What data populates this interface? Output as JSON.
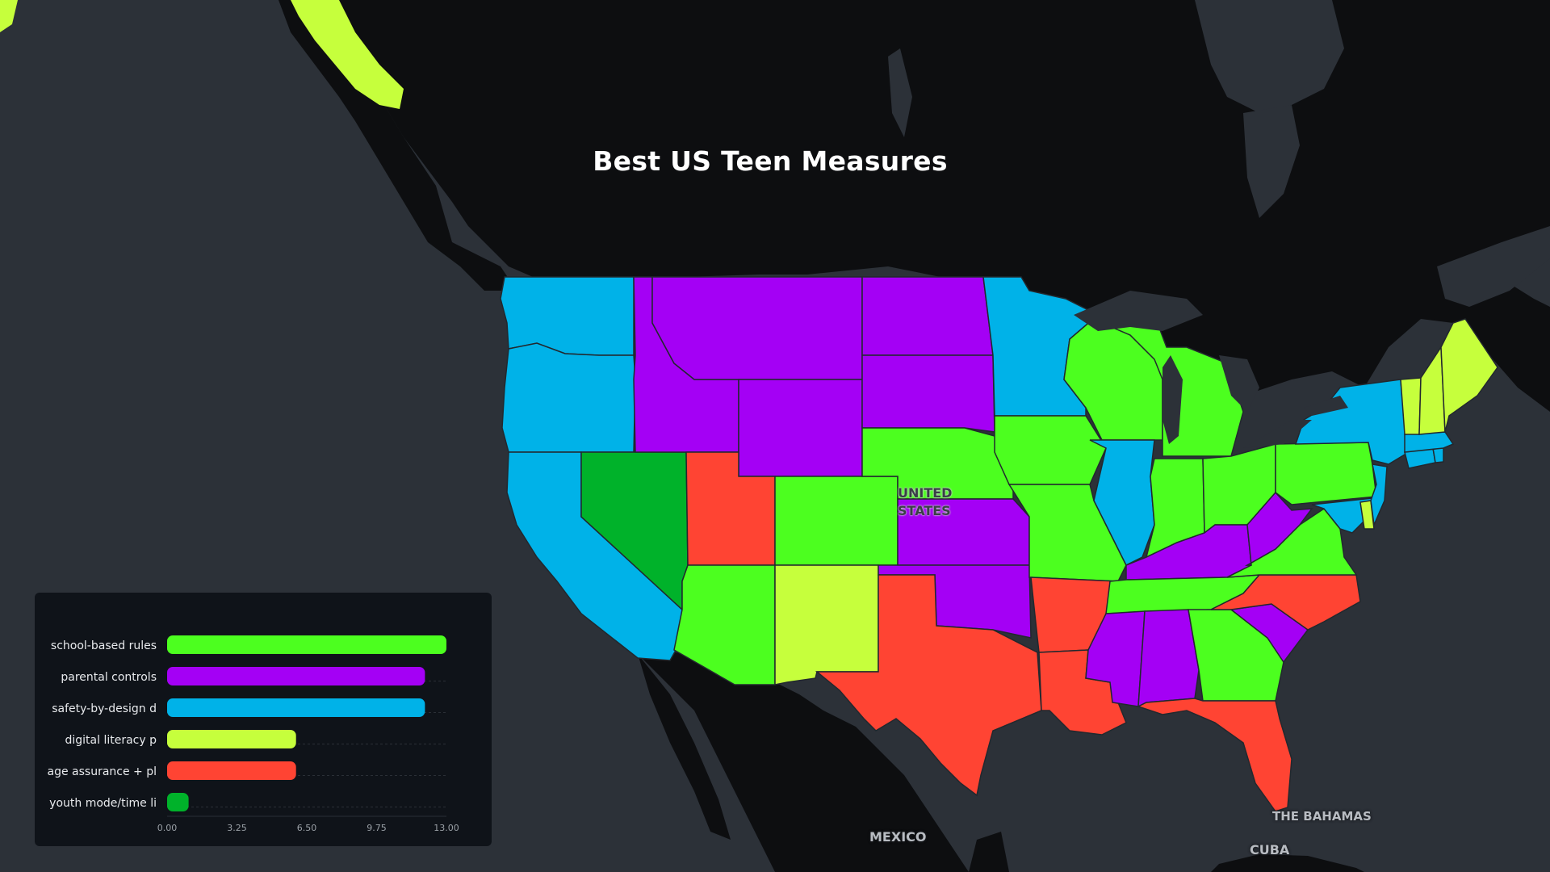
{
  "title": "Best US Teen Measures",
  "places": {
    "country": "UNITED\nSTATES",
    "mexico": "MEXICO",
    "bahamas": "THE BAHAMAS",
    "cuba": "CUBA"
  },
  "colors": {
    "ocean": "#2c3138",
    "land": "#0d0e10",
    "school_based_rules": "#4cff1f",
    "parental_controls": "#a400f5",
    "safety_by_design": "#00b2e8",
    "digital_literacy": "#c6ff3c",
    "age_assurance": "#ff4433",
    "youth_mode": "#00b22a"
  },
  "chart_data": {
    "type": "bar",
    "orientation": "horizontal",
    "categories": [
      "school-based rules",
      "parental controls",
      "safety-by-design d",
      "digital literacy p",
      "age assurance + pl",
      "youth mode/time li"
    ],
    "values": [
      13,
      12,
      12,
      6,
      6,
      1
    ],
    "xlim": [
      0,
      13
    ],
    "xticks": [
      "0.00",
      "3.25",
      "6.50",
      "9.75",
      "13.00"
    ]
  },
  "map_legend_assignment": {
    "safety-by-design d": [
      "WA",
      "OR",
      "CA",
      "MN",
      "IL",
      "NY",
      "MA",
      "RI",
      "CT",
      "NJ",
      "MD",
      "DE"
    ],
    "parental controls": [
      "ID",
      "MT",
      "WY",
      "ND",
      "SD",
      "KS",
      "OK",
      "KY",
      "WV",
      "MS",
      "AL",
      "SC"
    ],
    "school-based rules": [
      "AZ",
      "CO",
      "NE",
      "IA",
      "MO",
      "WI",
      "MI",
      "IN",
      "OH",
      "PA",
      "VA",
      "TN",
      "GA"
    ],
    "age assurance + pl": [
      "UT",
      "TX",
      "AR",
      "LA",
      "FL",
      "NC"
    ],
    "digital literacy p": [
      "NM",
      "VT",
      "NH",
      "ME"
    ],
    "youth mode/time li": [
      "NV"
    ]
  }
}
